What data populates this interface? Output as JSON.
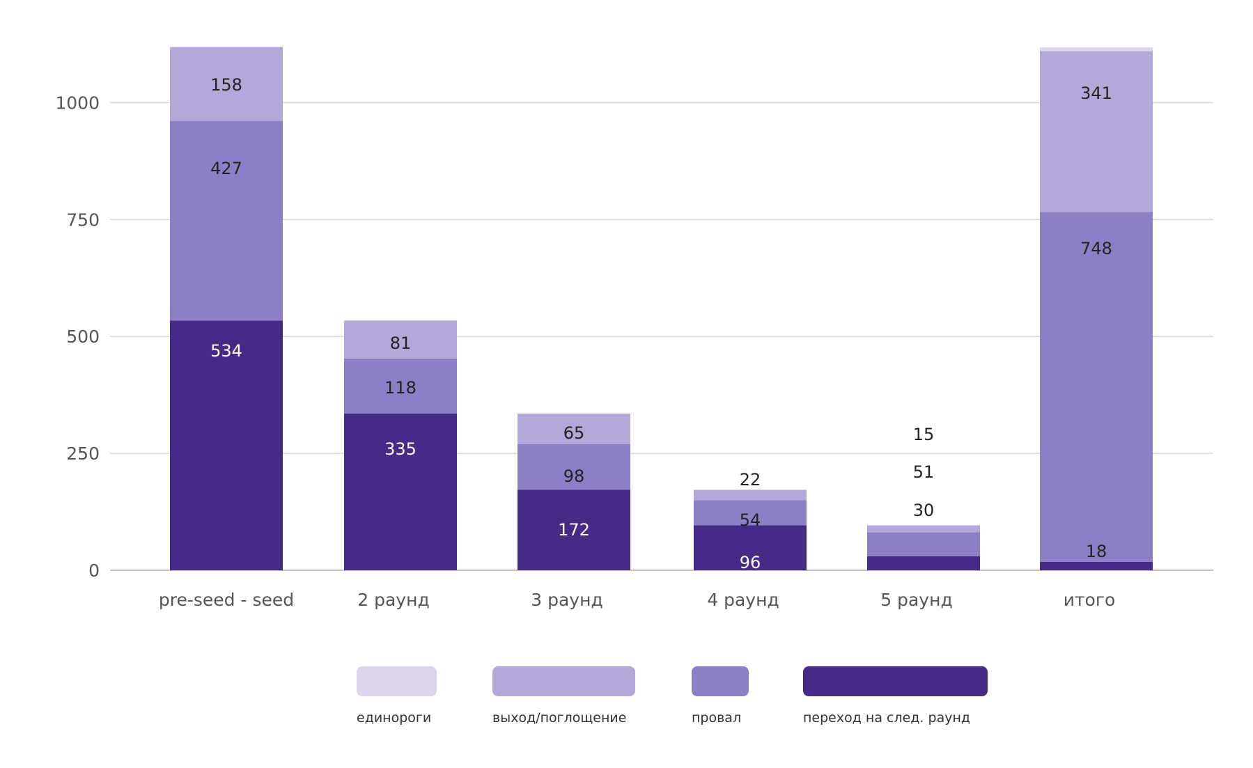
{
  "chart_data": {
    "type": "bar",
    "stacked": true,
    "categories": [
      "pre-seed - seed",
      "2 раунд",
      "3 раунд",
      "4 раунд",
      "5 раунд",
      "итого"
    ],
    "series": [
      {
        "name": "переход на след. раунд",
        "color": "#452a87",
        "values": [
          534,
          335,
          172,
          96,
          30,
          18
        ],
        "label_color": "#ffffff"
      },
      {
        "name": "провал",
        "color": "#8d7fc5",
        "values": [
          427,
          118,
          98,
          54,
          51,
          748
        ],
        "label_color": "#222222"
      },
      {
        "name": "выход/поглощение",
        "color": "#b3a8d8",
        "values": [
          158,
          81,
          65,
          22,
          15,
          341
        ],
        "label_color": "#222222"
      },
      {
        "name": "единороги",
        "color": "#dcd4ea",
        "values": [
          null,
          null,
          null,
          null,
          null,
          null
        ],
        "label_color": "#222222"
      }
    ],
    "yticks": [
      "0",
      "250",
      "500",
      "750",
      "1000"
    ],
    "ylim": [
      0,
      1130
    ],
    "grid": true,
    "legend": "bottom"
  }
}
